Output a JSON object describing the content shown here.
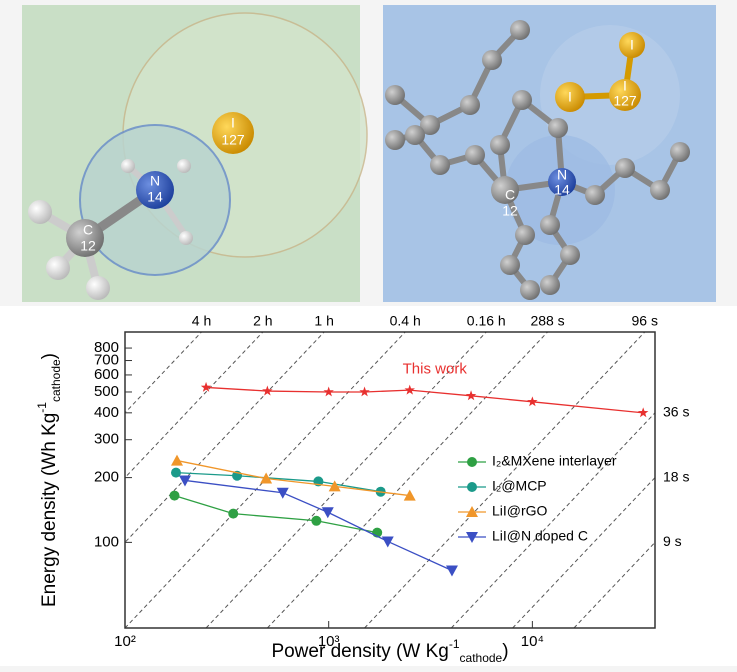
{
  "panels": [
    {
      "atoms": [
        {
          "symbol": "I",
          "mass": "127"
        },
        {
          "symbol": "N",
          "mass": "14"
        },
        {
          "symbol": "C",
          "mass": "12"
        }
      ]
    },
    {
      "atoms": [
        {
          "symbol": "I"
        },
        {
          "symbol": "I",
          "mass": "127"
        },
        {
          "symbol": "I"
        },
        {
          "symbol": "N",
          "mass": "14"
        },
        {
          "symbol": "C",
          "mass": "12"
        }
      ]
    }
  ],
  "chart_data": {
    "type": "scatter-line",
    "log_x": true,
    "log_y": true,
    "x_label_parts": [
      "Power density (W Kg",
      "-1",
      "cathode",
      ")"
    ],
    "y_label_parts": [
      "Energy density (Wh Kg",
      "-1",
      "cathode",
      ")"
    ],
    "xlim": [
      100,
      40000
    ],
    "xticks": [
      {
        "value": 100,
        "label": "10²"
      },
      {
        "value": 1000,
        "label": "10³"
      },
      {
        "value": 10000,
        "label": "10⁴"
      }
    ],
    "ylim": [
      40,
      950
    ],
    "yticks": [
      100,
      200,
      300,
      400,
      500,
      600,
      700,
      800
    ],
    "time_lines": [
      {
        "value": 14400,
        "label": "4 h"
      },
      {
        "value": 7200,
        "label": "2 h"
      },
      {
        "value": 3600,
        "label": "1 h"
      },
      {
        "value": 1440,
        "label": "0.4 h"
      },
      {
        "value": 576,
        "label": "0.16 h"
      },
      {
        "value": 288,
        "label": "288 s"
      },
      {
        "value": 96,
        "label": "96 s"
      },
      {
        "value": 36,
        "label": "36 s"
      },
      {
        "value": 18,
        "label": "18 s"
      },
      {
        "value": 9,
        "label": "9 s"
      }
    ],
    "legend": "right",
    "series": [
      {
        "name": "I₂&MXene interlayer",
        "color": "#2ea043",
        "marker": "circle",
        "x": [
          175,
          340,
          870,
          1730
        ],
        "values": [
          165,
          136,
          126,
          111
        ]
      },
      {
        "name": "I₂@MCP",
        "color": "#1b9a8a",
        "marker": "circle",
        "x": [
          178,
          355,
          890,
          1800
        ],
        "values": [
          211,
          204,
          192,
          172
        ]
      },
      {
        "name": "LiI@rGO",
        "color": "#f0962a",
        "marker": "triangle-up",
        "x": [
          180,
          493,
          1070,
          2500
        ],
        "values": [
          240,
          198,
          182,
          165
        ]
      },
      {
        "name": "LiI@N doped C",
        "color": "#3b4fc4",
        "marker": "triangle-down",
        "x": [
          197,
          595,
          990,
          1950,
          4030
        ],
        "values": [
          194,
          170,
          138,
          101,
          74
        ]
      },
      {
        "name": "This work",
        "color": "#e8302f",
        "marker": "star",
        "inline_label": true,
        "x": [
          250,
          500,
          1000,
          1500,
          2500,
          5000,
          10000,
          35000
        ],
        "values": [
          525,
          505,
          500,
          500,
          510,
          480,
          450,
          400
        ]
      }
    ]
  }
}
